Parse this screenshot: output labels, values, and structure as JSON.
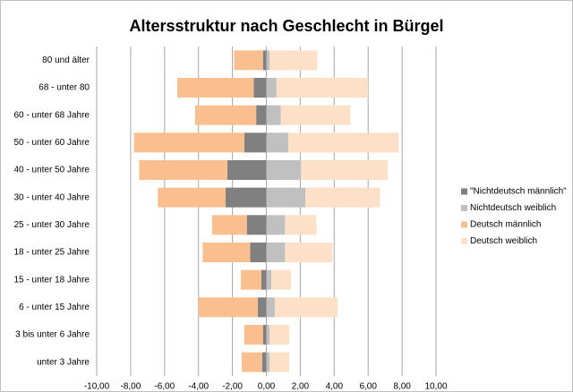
{
  "chart_data": {
    "type": "bar",
    "orientation": "horizontal",
    "stacked": true,
    "title": "Altersstruktur nach Geschlecht in Bürgel",
    "categories": [
      "80 und älter",
      "68 - unter 80",
      "60 - unter 68 Jahre",
      "50 - unter 60 Jahre",
      "40 - unter 50 Jahre",
      "30 - unter 40 Jahre",
      "25 - unter 30 Jahre",
      "18 - unter 25 Jahre",
      "15 - unter 18 Jahre",
      "6 - unter 15 Jahre",
      "3 bis unter 6 Jahre",
      "unter 3 Jahre"
    ],
    "series": [
      {
        "name": "\"Nichtdeutsch männlich\"",
        "color": "#808080",
        "values": [
          -0.2,
          -0.75,
          -0.6,
          -1.3,
          -2.3,
          -2.4,
          -1.15,
          -0.95,
          -0.3,
          -0.5,
          -0.2,
          -0.25
        ]
      },
      {
        "name": "Nichtdeutsch weiblich",
        "color": "#c0c0c0",
        "values": [
          0.2,
          0.6,
          0.85,
          1.3,
          2.05,
          2.3,
          1.1,
          1.1,
          0.3,
          0.5,
          0.2,
          0.2
        ]
      },
      {
        "name": "Deutsch männlich",
        "color": "#fabf8f",
        "values": [
          -1.7,
          -4.5,
          -3.6,
          -6.5,
          -5.2,
          -4.0,
          -2.05,
          -2.8,
          -1.2,
          -3.5,
          -1.1,
          -1.2
        ]
      },
      {
        "name": "Deutsch weiblich",
        "color": "#fde0c8",
        "values": [
          2.8,
          5.4,
          4.1,
          6.5,
          5.1,
          4.4,
          1.85,
          2.8,
          1.15,
          3.7,
          1.15,
          1.15
        ]
      }
    ],
    "xlim": [
      -10,
      10
    ],
    "xticks": [
      {
        "value": -10,
        "label": "-10,00"
      },
      {
        "value": -8,
        "label": "-8,00"
      },
      {
        "value": -6,
        "label": "-6,00"
      },
      {
        "value": -4,
        "label": "-4,00"
      },
      {
        "value": -2,
        "label": "-2,00"
      },
      {
        "value": 0,
        "label": "0,00"
      },
      {
        "value": 2,
        "label": "2,00"
      },
      {
        "value": 4,
        "label": "4,00"
      },
      {
        "value": 6,
        "label": "6,00"
      },
      {
        "value": 8,
        "label": "8,00"
      },
      {
        "value": 10,
        "label": "10,00"
      }
    ],
    "grid": true,
    "legend": "right"
  }
}
